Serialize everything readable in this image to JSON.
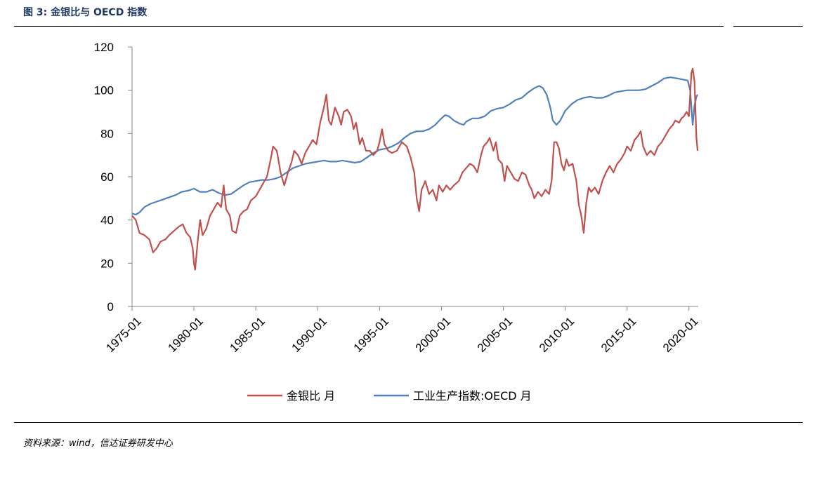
{
  "figure": {
    "title": "图 3:  金银比与 OECD 指数",
    "source": "资料来源：wind，信达证券研发中心"
  },
  "chart_data": {
    "type": "line",
    "title": "",
    "xlabel": "",
    "ylabel": "",
    "ylim": [
      0,
      120
    ],
    "yticks": [
      0,
      20,
      40,
      60,
      80,
      100,
      120
    ],
    "xlim": [
      1975.0,
      2020.75
    ],
    "xticks": [
      {
        "label": "1975-01",
        "value": 1975.0
      },
      {
        "label": "1980-01",
        "value": 1980.0
      },
      {
        "label": "1985-01",
        "value": 1985.0
      },
      {
        "label": "1990-01",
        "value": 1990.0
      },
      {
        "label": "1995-01",
        "value": 1995.0
      },
      {
        "label": "2000-01",
        "value": 2000.0
      },
      {
        "label": "2005-01",
        "value": 2005.0
      },
      {
        "label": "2010-01",
        "value": 2010.0
      },
      {
        "label": "2015-01",
        "value": 2015.0
      },
      {
        "label": "2020-01",
        "value": 2020.0
      }
    ],
    "grid": false,
    "legend_position": "bottom",
    "series": [
      {
        "name": "金银比 月",
        "color": "#c0504d",
        "points": [
          [
            1975.0,
            42
          ],
          [
            1975.3,
            40
          ],
          [
            1975.6,
            34
          ],
          [
            1976.0,
            33
          ],
          [
            1976.4,
            31
          ],
          [
            1976.7,
            25
          ],
          [
            1977.0,
            27
          ],
          [
            1977.3,
            30
          ],
          [
            1977.7,
            31
          ],
          [
            1978.0,
            33
          ],
          [
            1978.4,
            35
          ],
          [
            1978.8,
            37
          ],
          [
            1979.1,
            38
          ],
          [
            1979.4,
            34
          ],
          [
            1979.7,
            32
          ],
          [
            1979.9,
            27
          ],
          [
            1980.0,
            20
          ],
          [
            1980.1,
            17
          ],
          [
            1980.3,
            30
          ],
          [
            1980.5,
            40
          ],
          [
            1980.7,
            33
          ],
          [
            1981.0,
            36
          ],
          [
            1981.3,
            42
          ],
          [
            1981.6,
            45
          ],
          [
            1981.9,
            48
          ],
          [
            1982.2,
            46
          ],
          [
            1982.4,
            56
          ],
          [
            1982.6,
            45
          ],
          [
            1982.9,
            42
          ],
          [
            1983.1,
            35
          ],
          [
            1983.4,
            34
          ],
          [
            1983.7,
            42
          ],
          [
            1984.0,
            44
          ],
          [
            1984.3,
            45
          ],
          [
            1984.6,
            49
          ],
          [
            1985.0,
            51
          ],
          [
            1985.3,
            54
          ],
          [
            1985.6,
            57
          ],
          [
            1985.9,
            60
          ],
          [
            1986.2,
            68
          ],
          [
            1986.4,
            74
          ],
          [
            1986.7,
            72
          ],
          [
            1987.0,
            62
          ],
          [
            1987.3,
            56
          ],
          [
            1987.6,
            62
          ],
          [
            1987.9,
            67
          ],
          [
            1988.1,
            72
          ],
          [
            1988.4,
            70
          ],
          [
            1988.7,
            66
          ],
          [
            1989.0,
            71
          ],
          [
            1989.3,
            74
          ],
          [
            1989.6,
            77
          ],
          [
            1989.9,
            75
          ],
          [
            1990.2,
            85
          ],
          [
            1990.5,
            92
          ],
          [
            1990.7,
            98
          ],
          [
            1990.9,
            86
          ],
          [
            1991.1,
            84
          ],
          [
            1991.4,
            92
          ],
          [
            1991.7,
            88
          ],
          [
            1991.9,
            84
          ],
          [
            1992.1,
            90
          ],
          [
            1992.4,
            91
          ],
          [
            1992.7,
            88
          ],
          [
            1992.9,
            82
          ],
          [
            1993.1,
            85
          ],
          [
            1993.4,
            75
          ],
          [
            1993.6,
            78
          ],
          [
            1993.9,
            72
          ],
          [
            1994.2,
            72
          ],
          [
            1994.5,
            70
          ],
          [
            1994.8,
            72
          ],
          [
            1995.0,
            76
          ],
          [
            1995.2,
            82
          ],
          [
            1995.4,
            75
          ],
          [
            1995.7,
            72
          ],
          [
            1996.0,
            71
          ],
          [
            1996.4,
            72
          ],
          [
            1996.8,
            76
          ],
          [
            1997.2,
            74
          ],
          [
            1997.5,
            69
          ],
          [
            1997.8,
            62
          ],
          [
            1998.0,
            50
          ],
          [
            1998.2,
            44
          ],
          [
            1998.4,
            54
          ],
          [
            1998.7,
            58
          ],
          [
            1999.0,
            52
          ],
          [
            1999.3,
            54
          ],
          [
            1999.6,
            49
          ],
          [
            1999.8,
            56
          ],
          [
            2000.1,
            53
          ],
          [
            2000.4,
            56
          ],
          [
            2000.7,
            54
          ],
          [
            2001.0,
            56
          ],
          [
            2001.4,
            58
          ],
          [
            2001.7,
            62
          ],
          [
            2002.0,
            64
          ],
          [
            2002.3,
            66
          ],
          [
            2002.6,
            65
          ],
          [
            2002.9,
            62
          ],
          [
            2003.2,
            70
          ],
          [
            2003.4,
            74
          ],
          [
            2003.7,
            76
          ],
          [
            2003.9,
            78
          ],
          [
            2004.2,
            72
          ],
          [
            2004.4,
            76
          ],
          [
            2004.6,
            68
          ],
          [
            2004.9,
            66
          ],
          [
            2005.1,
            58
          ],
          [
            2005.3,
            65
          ],
          [
            2005.6,
            62
          ],
          [
            2005.9,
            59
          ],
          [
            2006.2,
            58
          ],
          [
            2006.5,
            62
          ],
          [
            2006.8,
            61
          ],
          [
            2007.1,
            56
          ],
          [
            2007.3,
            54
          ],
          [
            2007.5,
            50
          ],
          [
            2007.8,
            53
          ],
          [
            2008.1,
            51
          ],
          [
            2008.4,
            54
          ],
          [
            2008.7,
            52
          ],
          [
            2008.9,
            58
          ],
          [
            2009.1,
            76
          ],
          [
            2009.3,
            76
          ],
          [
            2009.5,
            73
          ],
          [
            2009.7,
            66
          ],
          [
            2009.9,
            63
          ],
          [
            2010.1,
            68
          ],
          [
            2010.3,
            65
          ],
          [
            2010.6,
            66
          ],
          [
            2010.9,
            58
          ],
          [
            2011.1,
            47
          ],
          [
            2011.3,
            42
          ],
          [
            2011.5,
            34
          ],
          [
            2011.7,
            48
          ],
          [
            2011.9,
            55
          ],
          [
            2012.1,
            53
          ],
          [
            2012.4,
            55
          ],
          [
            2012.7,
            52
          ],
          [
            2013.0,
            58
          ],
          [
            2013.3,
            62
          ],
          [
            2013.6,
            65
          ],
          [
            2013.9,
            62
          ],
          [
            2014.2,
            66
          ],
          [
            2014.5,
            68
          ],
          [
            2014.8,
            71
          ],
          [
            2015.0,
            74
          ],
          [
            2015.3,
            72
          ],
          [
            2015.6,
            77
          ],
          [
            2015.9,
            79
          ],
          [
            2016.1,
            81
          ],
          [
            2016.3,
            74
          ],
          [
            2016.6,
            70
          ],
          [
            2016.9,
            72
          ],
          [
            2017.2,
            70
          ],
          [
            2017.5,
            74
          ],
          [
            2017.8,
            76
          ],
          [
            2018.1,
            79
          ],
          [
            2018.4,
            82
          ],
          [
            2018.7,
            84
          ],
          [
            2018.9,
            86
          ],
          [
            2019.2,
            85
          ],
          [
            2019.4,
            87
          ],
          [
            2019.6,
            88
          ],
          [
            2019.8,
            90
          ],
          [
            2020.0,
            88
          ],
          [
            2020.1,
            98
          ],
          [
            2020.2,
            108
          ],
          [
            2020.3,
            110
          ],
          [
            2020.45,
            104
          ],
          [
            2020.6,
            78
          ],
          [
            2020.7,
            72
          ]
        ]
      },
      {
        "name": "工业生产指数:OECD 月",
        "color": "#4f81bd",
        "points": [
          [
            1975.0,
            43
          ],
          [
            1975.3,
            42.5
          ],
          [
            1975.6,
            43.5
          ],
          [
            1976.0,
            46
          ],
          [
            1976.5,
            47.5
          ],
          [
            1977.0,
            48.5
          ],
          [
            1977.5,
            49.5
          ],
          [
            1978.0,
            50.5
          ],
          [
            1978.5,
            51.5
          ],
          [
            1979.0,
            53
          ],
          [
            1979.5,
            53.5
          ],
          [
            1980.0,
            54.5
          ],
          [
            1980.5,
            53
          ],
          [
            1981.0,
            53
          ],
          [
            1981.5,
            54
          ],
          [
            1982.0,
            52.5
          ],
          [
            1982.5,
            51.5
          ],
          [
            1983.0,
            52
          ],
          [
            1983.5,
            54
          ],
          [
            1984.0,
            56
          ],
          [
            1984.5,
            57.5
          ],
          [
            1985.0,
            58
          ],
          [
            1985.5,
            58.5
          ],
          [
            1986.0,
            58.5
          ],
          [
            1986.5,
            59
          ],
          [
            1987.0,
            60
          ],
          [
            1987.5,
            62
          ],
          [
            1988.0,
            64
          ],
          [
            1988.5,
            65
          ],
          [
            1989.0,
            66
          ],
          [
            1989.5,
            66.5
          ],
          [
            1990.0,
            67
          ],
          [
            1990.5,
            67.5
          ],
          [
            1991.0,
            67
          ],
          [
            1991.5,
            67
          ],
          [
            1992.0,
            67.5
          ],
          [
            1992.5,
            67
          ],
          [
            1993.0,
            66.5
          ],
          [
            1993.5,
            67
          ],
          [
            1994.0,
            69
          ],
          [
            1994.5,
            71
          ],
          [
            1995.0,
            72.5
          ],
          [
            1995.5,
            73
          ],
          [
            1996.0,
            74
          ],
          [
            1996.5,
            75.5
          ],
          [
            1997.0,
            78
          ],
          [
            1997.5,
            80
          ],
          [
            1998.0,
            81
          ],
          [
            1998.5,
            81
          ],
          [
            1999.0,
            82
          ],
          [
            1999.5,
            84
          ],
          [
            2000.0,
            87
          ],
          [
            2000.3,
            88.5
          ],
          [
            2000.6,
            88
          ],
          [
            2001.0,
            86
          ],
          [
            2001.5,
            84.5
          ],
          [
            2001.8,
            84
          ],
          [
            2002.0,
            85.5
          ],
          [
            2002.5,
            87
          ],
          [
            2003.0,
            87
          ],
          [
            2003.5,
            88
          ],
          [
            2004.0,
            90.5
          ],
          [
            2004.5,
            91.5
          ],
          [
            2005.0,
            92
          ],
          [
            2005.5,
            93.5
          ],
          [
            2006.0,
            95.5
          ],
          [
            2006.5,
            96.5
          ],
          [
            2007.0,
            99
          ],
          [
            2007.5,
            101
          ],
          [
            2007.9,
            102
          ],
          [
            2008.2,
            101
          ],
          [
            2008.5,
            98
          ],
          [
            2008.8,
            92
          ],
          [
            2009.0,
            86
          ],
          [
            2009.3,
            84
          ],
          [
            2009.6,
            86
          ],
          [
            2010.0,
            90.5
          ],
          [
            2010.5,
            93.5
          ],
          [
            2011.0,
            95.5
          ],
          [
            2011.5,
            96.5
          ],
          [
            2012.0,
            97
          ],
          [
            2012.5,
            96.5
          ],
          [
            2013.0,
            96.5
          ],
          [
            2013.5,
            97.5
          ],
          [
            2014.0,
            99
          ],
          [
            2014.5,
            99.5
          ],
          [
            2015.0,
            100
          ],
          [
            2015.5,
            100
          ],
          [
            2016.0,
            100
          ],
          [
            2016.5,
            100.5
          ],
          [
            2017.0,
            102
          ],
          [
            2017.5,
            103.5
          ],
          [
            2018.0,
            105.5
          ],
          [
            2018.5,
            106
          ],
          [
            2019.0,
            105.5
          ],
          [
            2019.5,
            105
          ],
          [
            2019.9,
            104.5
          ],
          [
            2020.1,
            100
          ],
          [
            2020.2,
            92
          ],
          [
            2020.3,
            84
          ],
          [
            2020.45,
            93
          ],
          [
            2020.6,
            97
          ],
          [
            2020.7,
            98
          ]
        ]
      }
    ]
  }
}
